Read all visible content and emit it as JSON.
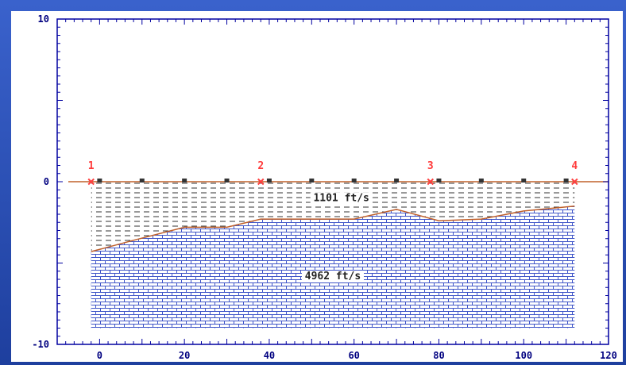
{
  "background": {
    "panel_color": "#2a4fb8",
    "plot_color": "#ffffff",
    "axis_color": "#0000a0"
  },
  "chart_data": {
    "type": "other",
    "title": "",
    "xlabel": "",
    "ylabel": "",
    "xlim": [
      -10,
      120
    ],
    "ylim": [
      -10,
      10
    ],
    "x_ticks": [
      0,
      20,
      40,
      60,
      80,
      100,
      120
    ],
    "y_ticks": [
      -10,
      0,
      10
    ],
    "surface": {
      "y": 0,
      "x_from": -10,
      "x_to": 120,
      "color": "#c0602a"
    },
    "geophones": {
      "x": [
        0,
        10,
        20,
        30,
        40,
        50,
        60,
        70,
        80,
        90,
        100,
        110
      ],
      "y": 0,
      "color": "#333333"
    },
    "shots": [
      {
        "label": "1",
        "x": -2,
        "y": 0
      },
      {
        "label": "2",
        "x": 38,
        "y": 0
      },
      {
        "label": "3",
        "x": 78,
        "y": 0
      },
      {
        "label": "4",
        "x": 112,
        "y": 0
      }
    ],
    "refractor": {
      "x": [
        -2,
        8,
        20,
        30,
        38,
        50,
        60,
        70,
        80,
        90,
        100,
        112
      ],
      "y": [
        -4.3,
        -3.6,
        -2.8,
        -2.8,
        -2.3,
        -2.3,
        -2.3,
        -1.7,
        -2.4,
        -2.3,
        -1.8,
        -1.5
      ],
      "color": "#c0602a"
    },
    "model_bottom": -9.0,
    "model_x_range": [
      -2,
      112
    ],
    "layers": [
      {
        "label": "1101 ft/s",
        "velocity": 1101,
        "pattern": "dashed",
        "label_x": 57,
        "label_y": -1.2
      },
      {
        "label": "4962 ft/s",
        "velocity": 4962,
        "pattern": "brick",
        "label_x": 55,
        "label_y": -6.0
      }
    ],
    "shot_color": "#ff4040",
    "brick_color": "#3f55c8"
  }
}
